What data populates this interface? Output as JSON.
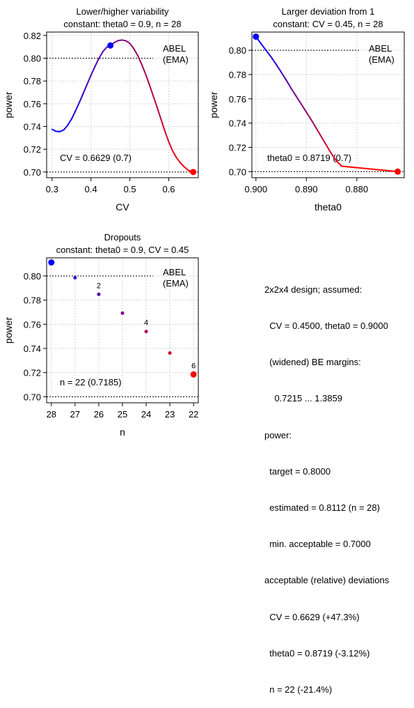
{
  "chart_data": [
    {
      "type": "line",
      "title": "Lower/higher variability",
      "subtitle": "constant: theta0 = 0.9, n = 28",
      "xlabel": "CV",
      "ylabel": "power",
      "xlim": [
        0.286,
        0.676
      ],
      "ylim": [
        0.695,
        0.823
      ],
      "xticks": [
        "0.3",
        "0.4",
        "0.5",
        "0.6"
      ],
      "xtick_values": [
        0.3,
        0.4,
        0.5,
        0.6
      ],
      "yticks": [
        "0.70",
        "0.72",
        "0.74",
        "0.76",
        "0.78",
        "0.80",
        "0.82"
      ],
      "ytick_values": [
        0.7,
        0.72,
        0.74,
        0.76,
        0.78,
        0.8,
        0.82
      ],
      "x_reversed": false,
      "grid": true,
      "reference_lines": [
        0.8,
        0.7
      ],
      "series": [
        {
          "points": [
            [
              0.3,
              0.7375
            ],
            [
              0.31,
              0.7357
            ],
            [
              0.32,
              0.7355
            ],
            [
              0.33,
              0.737
            ],
            [
              0.34,
              0.741
            ],
            [
              0.35,
              0.7465
            ],
            [
              0.36,
              0.7535
            ],
            [
              0.37,
              0.761
            ],
            [
              0.38,
              0.769
            ],
            [
              0.39,
              0.777
            ],
            [
              0.4,
              0.785
            ],
            [
              0.41,
              0.7925
            ],
            [
              0.42,
              0.7995
            ],
            [
              0.43,
              0.8055
            ],
            [
              0.44,
              0.8095
            ],
            [
              0.45,
              0.8112
            ],
            [
              0.46,
              0.8138
            ],
            [
              0.47,
              0.8155
            ],
            [
              0.48,
              0.816
            ],
            [
              0.49,
              0.8153
            ],
            [
              0.5,
              0.813
            ],
            [
              0.51,
              0.8085
            ],
            [
              0.52,
              0.8025
            ],
            [
              0.53,
              0.795
            ],
            [
              0.54,
              0.7865
            ],
            [
              0.55,
              0.777
            ],
            [
              0.56,
              0.767
            ],
            [
              0.57,
              0.757
            ],
            [
              0.58,
              0.7465
            ],
            [
              0.59,
              0.736
            ],
            [
              0.6,
              0.7265
            ],
            [
              0.61,
              0.7185
            ],
            [
              0.62,
              0.7125
            ],
            [
              0.63,
              0.708
            ],
            [
              0.64,
              0.7045
            ],
            [
              0.65,
              0.7015
            ],
            [
              0.6629,
              0.7
            ]
          ]
        }
      ],
      "markers": [
        {
          "x": 0.45,
          "y": 0.8112,
          "color": "#0000ff"
        },
        {
          "x": 0.6629,
          "y": 0.7,
          "color": "#ff0000"
        }
      ],
      "legend": [
        "ABEL",
        "(EMA)"
      ],
      "annotation": "CV = 0.6629 (0.7)"
    },
    {
      "type": "line",
      "title": "Larger deviation from 1",
      "subtitle": "constant: CV = 0.45, n = 28",
      "xlabel": "theta0",
      "ylabel": "power",
      "xlim": [
        0.9008,
        0.8706
      ],
      "ylim": [
        0.695,
        0.815
      ],
      "xticks": [
        "0.900",
        "0.890",
        "0.880"
      ],
      "xtick_values": [
        0.9,
        0.89,
        0.88
      ],
      "yticks": [
        "0.70",
        "0.72",
        "0.74",
        "0.76",
        "0.78",
        "0.80"
      ],
      "ytick_values": [
        0.7,
        0.72,
        0.74,
        0.76,
        0.78,
        0.8
      ],
      "x_reversed": true,
      "grid": true,
      "reference_lines": [
        0.8,
        0.7
      ],
      "series": [
        {
          "points": [
            [
              0.9,
              0.8112
            ],
            [
              0.899,
              0.8055
            ],
            [
              0.898,
              0.8
            ],
            [
              0.897,
              0.7945
            ],
            [
              0.896,
              0.7885
            ],
            [
              0.895,
              0.782
            ],
            [
              0.894,
              0.7755
            ],
            [
              0.893,
              0.7685
            ],
            [
              0.892,
              0.762
            ],
            [
              0.891,
              0.7555
            ],
            [
              0.89,
              0.749
            ],
            [
              0.889,
              0.7425
            ],
            [
              0.888,
              0.7355
            ],
            [
              0.887,
              0.7285
            ],
            [
              0.886,
              0.7215
            ],
            [
              0.885,
              0.7145
            ],
            [
              0.884,
              0.7085
            ],
            [
              0.883,
              0.7045
            ],
            [
              0.8719,
              0.7
            ]
          ]
        }
      ],
      "markers": [
        {
          "x": 0.9,
          "y": 0.8112,
          "color": "#0000ff"
        },
        {
          "x": 0.8719,
          "y": 0.7,
          "color": "#ff0000"
        }
      ],
      "legend": [
        "ABEL",
        "(EMA)"
      ],
      "annotation": "theta0 = 0.8719 (0.7)"
    },
    {
      "type": "scatter",
      "title": "Dropouts",
      "subtitle": "constant: theta0 = 0.9, CV = 0.45",
      "xlabel": "n",
      "ylabel": "power",
      "xlim": [
        28.2,
        21.8
      ],
      "ylim": [
        0.695,
        0.815
      ],
      "xticks": [
        "28",
        "27",
        "26",
        "25",
        "24",
        "23",
        "22"
      ],
      "xtick_values": [
        28,
        27,
        26,
        25,
        24,
        23,
        22
      ],
      "yticks": [
        "0.70",
        "0.72",
        "0.74",
        "0.76",
        "0.78",
        "0.80"
      ],
      "ytick_values": [
        0.7,
        0.72,
        0.74,
        0.76,
        0.78,
        0.8
      ],
      "x_reversed": true,
      "grid": true,
      "reference_lines": [
        0.8,
        0.7
      ],
      "points": [
        {
          "x": 28,
          "y": 0.8112,
          "label": ""
        },
        {
          "x": 27,
          "y": 0.7985,
          "label": ""
        },
        {
          "x": 26,
          "y": 0.7848,
          "label": "2"
        },
        {
          "x": 25,
          "y": 0.7692,
          "label": ""
        },
        {
          "x": 24,
          "y": 0.754,
          "label": "4"
        },
        {
          "x": 23,
          "y": 0.7362,
          "label": ""
        },
        {
          "x": 22,
          "y": 0.7185,
          "label": "6"
        }
      ],
      "legend": [
        "ABEL",
        "(EMA)"
      ],
      "annotation": "n = 22 (0.7185)"
    }
  ],
  "summary": [
    "2x2x4 design; assumed:",
    "  CV = 0.4500, theta0 = 0.9000",
    "  (widened) BE margins:",
    "    0.7215 ... 1.3859",
    "power:",
    "  target = 0.8000",
    "  estimated = 0.8112 (n = 28)",
    "  min. acceptable = 0.7000",
    "acceptable (relative) deviations",
    "  CV = 0.6629 (+47.3%)",
    "  theta0 = 0.8719 (-3.12%)",
    "  n = 22 (-21.4%)"
  ]
}
